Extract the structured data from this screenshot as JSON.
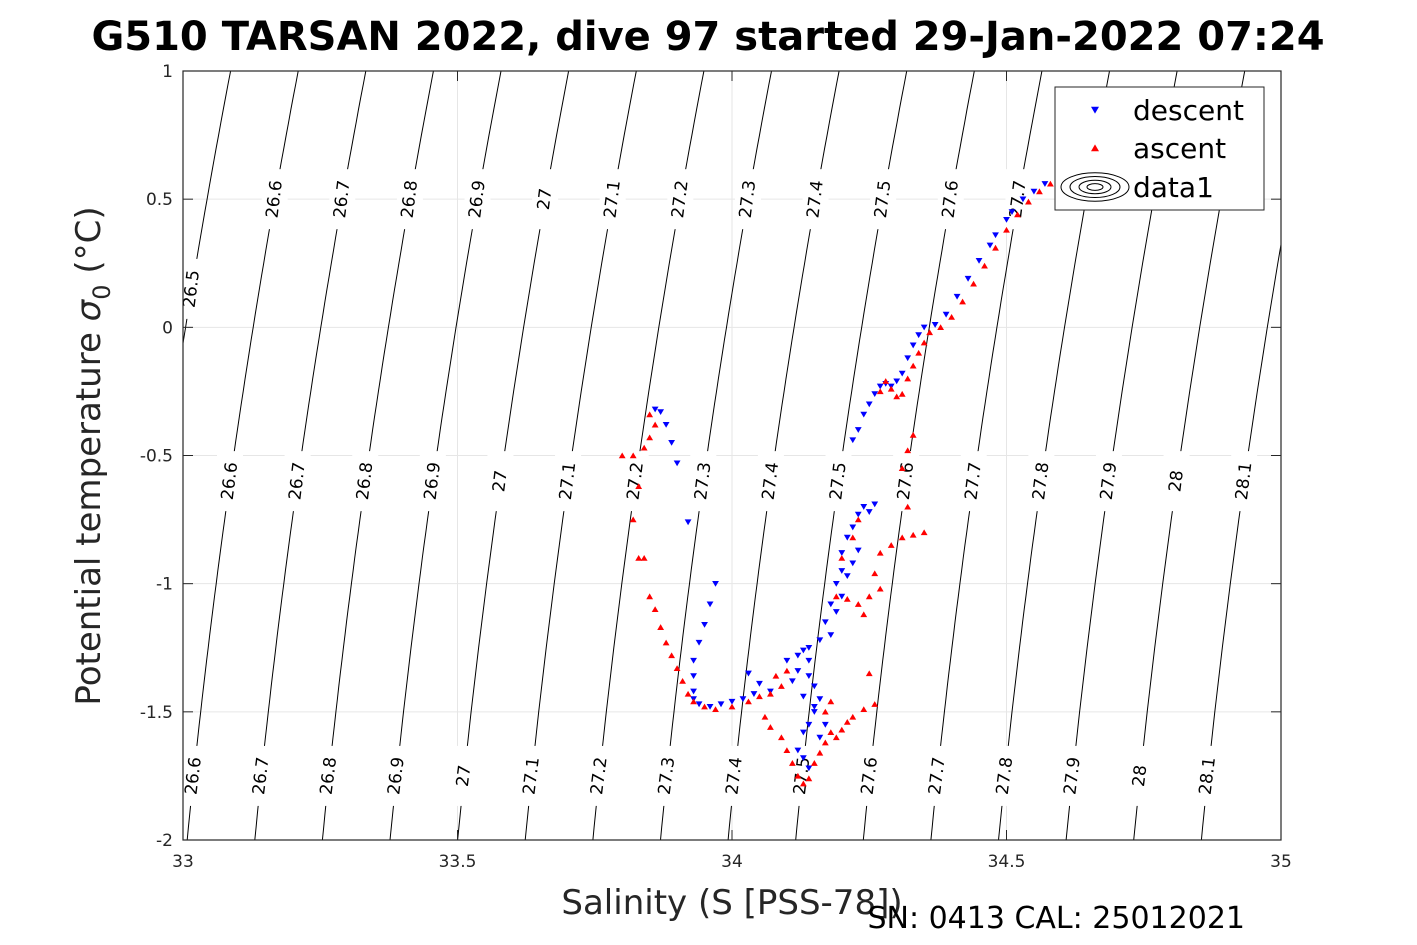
{
  "figure": {
    "title": "G510 TARSAN 2022, dive 97 started 29-Jan-2022 07:24",
    "footer": "SN: 0413  CAL: 25012021"
  },
  "colors": {
    "descent": "#0000ff",
    "ascent": "#ff0000",
    "contour": "#000000",
    "grid": "#e6e6e6",
    "axis": "#262626"
  },
  "chart_data": {
    "type": "scatter",
    "xlabel": "Salinity (S [PSS-78])",
    "ylabel_main": "Potential temperature ",
    "ylabel_sigma": "σ",
    "ylabel_sub": "0",
    "ylabel_unit": " (°C)",
    "xlim": [
      33,
      35
    ],
    "ylim": [
      -2,
      1
    ],
    "xticks": [
      33,
      33.5,
      34,
      34.5,
      35
    ],
    "xtick_labels": [
      "33",
      "33.5",
      "34",
      "34.5",
      "35"
    ],
    "yticks": [
      -2,
      -1.5,
      -1,
      -0.5,
      0,
      0.5,
      1
    ],
    "ytick_labels": [
      "-2",
      "-1.5",
      "-1",
      "-0.5",
      "0",
      "0.5",
      "1"
    ],
    "grid": true,
    "legend": {
      "position": "top-right",
      "entries": [
        {
          "label": "descent",
          "marker": "triangle-down",
          "color": "#0000ff"
        },
        {
          "label": "ascent",
          "marker": "triangle-up",
          "color": "#ff0000"
        },
        {
          "label": "data1",
          "marker": "contour",
          "color": "#000000"
        }
      ]
    },
    "density_contours": {
      "levels": [
        26.5,
        26.6,
        26.7,
        26.8,
        26.9,
        27,
        27.1,
        27.2,
        27.3,
        27.4,
        27.5,
        27.6,
        27.7,
        27.8,
        27.9,
        28,
        28.1
      ],
      "level_labels": [
        "26.5",
        "26.6",
        "26.7",
        "26.8",
        "26.9",
        "27",
        "27.1",
        "27.2",
        "27.3",
        "27.4",
        "27.5",
        "27.6",
        "27.7",
        "27.8",
        "27.9",
        "28",
        "28.1"
      ],
      "label_rows": [
        {
          "temperature": 0.5,
          "levels": [
            "26.6",
            "26.7",
            "26.8",
            "26.9",
            "27",
            "27.1",
            "27.2",
            "27.3",
            "27.4",
            "27.5",
            "27.6",
            "27.7"
          ]
        },
        {
          "temperature": 0.15,
          "levels": [
            "26.5"
          ]
        },
        {
          "temperature": -0.6,
          "levels": [
            "26.6",
            "26.7",
            "26.8",
            "26.9",
            "27",
            "27.1",
            "27.2",
            "27.3",
            "27.4",
            "27.5",
            "27.6",
            "27.7",
            "27.8",
            "27.9",
            "28",
            "28.1"
          ]
        },
        {
          "temperature": -1.75,
          "levels": [
            "26.6",
            "26.7",
            "26.8",
            "26.9",
            "27",
            "27.1",
            "27.2",
            "27.3",
            "27.4",
            "27.5",
            "27.6",
            "27.7",
            "27.8",
            "27.9",
            "28",
            "28.1"
          ]
        }
      ]
    },
    "series": [
      {
        "name": "descent",
        "marker": "triangle-down",
        "color": "#0000ff",
        "points": [
          [
            34.57,
            0.56
          ],
          [
            34.55,
            0.53
          ],
          [
            34.53,
            0.5
          ],
          [
            34.51,
            0.45
          ],
          [
            34.5,
            0.42
          ],
          [
            34.48,
            0.36
          ],
          [
            34.47,
            0.32
          ],
          [
            34.45,
            0.26
          ],
          [
            34.43,
            0.19
          ],
          [
            34.41,
            0.12
          ],
          [
            34.39,
            0.05
          ],
          [
            34.37,
            0.01
          ],
          [
            34.35,
            0.0
          ],
          [
            34.34,
            -0.03
          ],
          [
            34.33,
            -0.07
          ],
          [
            34.32,
            -0.12
          ],
          [
            34.31,
            -0.18
          ],
          [
            34.3,
            -0.21
          ],
          [
            34.29,
            -0.23
          ],
          [
            34.28,
            -0.22
          ],
          [
            34.27,
            -0.23
          ],
          [
            34.26,
            -0.26
          ],
          [
            34.25,
            -0.3
          ],
          [
            34.24,
            -0.34
          ],
          [
            34.23,
            -0.4
          ],
          [
            34.22,
            -0.44
          ],
          [
            33.86,
            -0.32
          ],
          [
            33.87,
            -0.33
          ],
          [
            33.88,
            -0.38
          ],
          [
            33.89,
            -0.45
          ],
          [
            33.9,
            -0.53
          ],
          [
            33.92,
            -0.76
          ],
          [
            33.97,
            -1.0
          ],
          [
            33.96,
            -1.08
          ],
          [
            33.95,
            -1.16
          ],
          [
            33.94,
            -1.23
          ],
          [
            33.93,
            -1.3
          ],
          [
            33.93,
            -1.36
          ],
          [
            33.93,
            -1.42
          ],
          [
            33.93,
            -1.45
          ],
          [
            33.94,
            -1.47
          ],
          [
            33.96,
            -1.48
          ],
          [
            33.98,
            -1.47
          ],
          [
            34.0,
            -1.46
          ],
          [
            34.02,
            -1.45
          ],
          [
            34.04,
            -1.43
          ],
          [
            34.03,
            -1.35
          ],
          [
            34.05,
            -1.39
          ],
          [
            34.07,
            -1.42
          ],
          [
            34.1,
            -1.3
          ],
          [
            34.12,
            -1.28
          ],
          [
            34.13,
            -1.26
          ],
          [
            34.14,
            -1.25
          ],
          [
            34.14,
            -1.3
          ],
          [
            34.14,
            -1.36
          ],
          [
            34.15,
            -1.4
          ],
          [
            34.16,
            -1.45
          ],
          [
            34.15,
            -1.5
          ],
          [
            34.14,
            -1.55
          ],
          [
            34.13,
            -1.58
          ],
          [
            34.12,
            -1.65
          ],
          [
            34.13,
            -1.68
          ],
          [
            34.14,
            -1.72
          ],
          [
            34.16,
            -1.6
          ],
          [
            34.17,
            -1.55
          ],
          [
            34.15,
            -1.48
          ],
          [
            34.13,
            -1.44
          ],
          [
            34.11,
            -1.38
          ],
          [
            34.12,
            -1.34
          ],
          [
            34.16,
            -1.22
          ],
          [
            34.17,
            -1.15
          ],
          [
            34.18,
            -1.08
          ],
          [
            34.19,
            -1.0
          ],
          [
            34.2,
            -0.95
          ],
          [
            34.2,
            -0.88
          ],
          [
            34.21,
            -0.82
          ],
          [
            34.22,
            -0.78
          ],
          [
            34.23,
            -0.73
          ],
          [
            34.24,
            -0.7
          ],
          [
            34.25,
            -0.72
          ],
          [
            34.26,
            -0.69
          ],
          [
            34.23,
            -0.87
          ],
          [
            34.22,
            -0.92
          ],
          [
            34.21,
            -0.97
          ],
          [
            34.2,
            -1.05
          ],
          [
            34.19,
            -1.11
          ],
          [
            34.18,
            -1.2
          ]
        ]
      },
      {
        "name": "ascent",
        "marker": "triangle-up",
        "color": "#ff0000",
        "points": [
          [
            34.58,
            0.56
          ],
          [
            34.56,
            0.53
          ],
          [
            34.54,
            0.49
          ],
          [
            34.52,
            0.44
          ],
          [
            34.5,
            0.38
          ],
          [
            34.48,
            0.31
          ],
          [
            34.46,
            0.24
          ],
          [
            34.44,
            0.17
          ],
          [
            34.42,
            0.1
          ],
          [
            34.4,
            0.04
          ],
          [
            34.38,
            0.0
          ],
          [
            34.36,
            -0.02
          ],
          [
            34.35,
            -0.06
          ],
          [
            34.34,
            -0.1
          ],
          [
            34.33,
            -0.15
          ],
          [
            34.32,
            -0.2
          ],
          [
            34.31,
            -0.26
          ],
          [
            34.3,
            -0.27
          ],
          [
            34.29,
            -0.24
          ],
          [
            34.28,
            -0.21
          ],
          [
            34.27,
            -0.25
          ],
          [
            33.8,
            -0.5
          ],
          [
            33.82,
            -0.5
          ],
          [
            33.84,
            -0.47
          ],
          [
            33.85,
            -0.43
          ],
          [
            33.86,
            -0.38
          ],
          [
            33.85,
            -0.34
          ],
          [
            33.83,
            -0.62
          ],
          [
            33.82,
            -0.75
          ],
          [
            33.83,
            -0.9
          ],
          [
            33.84,
            -0.9
          ],
          [
            33.85,
            -1.05
          ],
          [
            33.86,
            -1.1
          ],
          [
            33.87,
            -1.17
          ],
          [
            33.88,
            -1.23
          ],
          [
            33.89,
            -1.28
          ],
          [
            33.9,
            -1.33
          ],
          [
            33.91,
            -1.38
          ],
          [
            33.92,
            -1.43
          ],
          [
            33.93,
            -1.46
          ],
          [
            33.95,
            -1.48
          ],
          [
            33.97,
            -1.49
          ],
          [
            34.0,
            -1.48
          ],
          [
            34.03,
            -1.46
          ],
          [
            34.05,
            -1.44
          ],
          [
            34.07,
            -1.43
          ],
          [
            34.08,
            -1.36
          ],
          [
            34.09,
            -1.4
          ],
          [
            34.1,
            -1.34
          ],
          [
            34.06,
            -1.52
          ],
          [
            34.07,
            -1.56
          ],
          [
            34.09,
            -1.6
          ],
          [
            34.1,
            -1.65
          ],
          [
            34.11,
            -1.7
          ],
          [
            34.12,
            -1.75
          ],
          [
            34.13,
            -1.78
          ],
          [
            34.14,
            -1.76
          ],
          [
            34.15,
            -1.7
          ],
          [
            34.16,
            -1.66
          ],
          [
            34.17,
            -1.62
          ],
          [
            34.18,
            -1.58
          ],
          [
            34.19,
            -1.6
          ],
          [
            34.2,
            -1.57
          ],
          [
            34.21,
            -1.54
          ],
          [
            34.22,
            -1.52
          ],
          [
            34.24,
            -1.49
          ],
          [
            34.26,
            -1.47
          ],
          [
            34.25,
            -1.35
          ],
          [
            34.18,
            -1.46
          ],
          [
            34.17,
            -1.5
          ],
          [
            34.19,
            -1.05
          ],
          [
            34.21,
            -1.06
          ],
          [
            34.23,
            -1.08
          ],
          [
            34.24,
            -1.12
          ],
          [
            34.25,
            -1.05
          ],
          [
            34.27,
            -1.02
          ],
          [
            34.26,
            -0.96
          ],
          [
            34.27,
            -0.88
          ],
          [
            34.29,
            -0.85
          ],
          [
            34.31,
            -0.82
          ],
          [
            34.33,
            -0.81
          ],
          [
            34.35,
            -0.8
          ],
          [
            34.32,
            -0.7
          ],
          [
            34.31,
            -0.55
          ],
          [
            34.32,
            -0.48
          ],
          [
            34.33,
            -0.42
          ],
          [
            34.23,
            -0.75
          ],
          [
            34.22,
            -0.82
          ],
          [
            34.2,
            -0.9
          ]
        ]
      }
    ]
  }
}
